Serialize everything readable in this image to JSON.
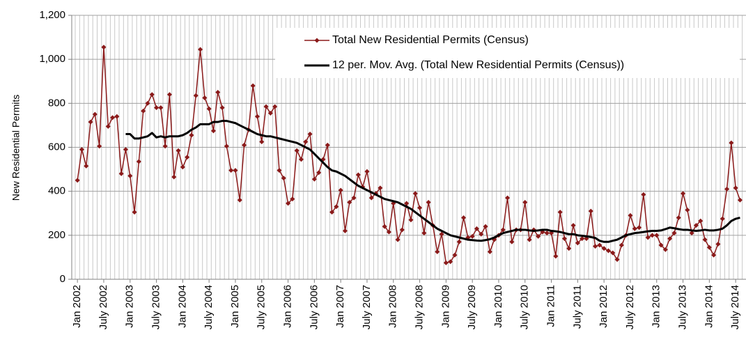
{
  "chart_data": {
    "type": "line",
    "ylabel": "New Residential Permits",
    "ylim": [
      0,
      1200
    ],
    "yticks": [
      0,
      200,
      400,
      600,
      800,
      {
        "value": 1000,
        "label": "1,000"
      },
      {
        "value": 1200,
        "label": "1,200"
      }
    ],
    "grid": true,
    "legend": "top-right",
    "categories": [
      "Jan 2002",
      null,
      null,
      null,
      null,
      null,
      "July 2002",
      null,
      null,
      null,
      null,
      null,
      "Jan 2003",
      null,
      null,
      null,
      null,
      null,
      "July 2003",
      null,
      null,
      null,
      null,
      null,
      "Jan 2004",
      null,
      null,
      null,
      null,
      null,
      "July 2004",
      null,
      null,
      null,
      null,
      null,
      "Jan 2005",
      null,
      null,
      null,
      null,
      null,
      "July 2005",
      null,
      null,
      null,
      null,
      null,
      "Jan 2006",
      null,
      null,
      null,
      null,
      null,
      "July 2006",
      null,
      null,
      null,
      null,
      null,
      "Jan 2007",
      null,
      null,
      null,
      null,
      null,
      "July 2007",
      null,
      null,
      null,
      null,
      null,
      "Jan 2008",
      null,
      null,
      null,
      null,
      null,
      "July 2008",
      null,
      null,
      null,
      null,
      null,
      "Jan 2009",
      null,
      null,
      null,
      null,
      null,
      "July 2009",
      null,
      null,
      null,
      null,
      null,
      "Jan 2010",
      null,
      null,
      null,
      null,
      null,
      "July 2010",
      null,
      null,
      null,
      null,
      null,
      "Jan 2011",
      null,
      null,
      null,
      null,
      null,
      "July 2011",
      null,
      null,
      null,
      null,
      null,
      "Jan 2012",
      null,
      null,
      null,
      null,
      null,
      "July 2012",
      null,
      null,
      null,
      null,
      null,
      "Jan 2013",
      null,
      null,
      null,
      null,
      null,
      "July 2013",
      null,
      null,
      null,
      null,
      null,
      "Jan 2014",
      null,
      null,
      null,
      null,
      null,
      "July 2014",
      null
    ],
    "series": [
      {
        "name": "Total New Residential Permits (Census)",
        "color": "#8b1a1a",
        "marker": "diamond",
        "values": [
          450,
          590,
          515,
          715,
          750,
          605,
          1055,
          695,
          735,
          740,
          480,
          590,
          470,
          305,
          535,
          765,
          800,
          840,
          780,
          780,
          605,
          840,
          465,
          585,
          510,
          555,
          655,
          835,
          1045,
          825,
          775,
          675,
          850,
          780,
          605,
          495,
          495,
          360,
          610,
          680,
          880,
          740,
          625,
          785,
          755,
          785,
          495,
          460,
          345,
          365,
          585,
          545,
          625,
          660,
          455,
          485,
          545,
          610,
          305,
          330,
          405,
          220,
          350,
          370,
          475,
          420,
          490,
          370,
          390,
          415,
          240,
          215,
          345,
          180,
          225,
          345,
          270,
          390,
          325,
          210,
          350,
          245,
          125,
          205,
          75,
          80,
          110,
          170,
          280,
          190,
          195,
          230,
          205,
          240,
          125,
          180,
          200,
          225,
          370,
          170,
          225,
          225,
          350,
          180,
          225,
          195,
          215,
          210,
          210,
          105,
          305,
          185,
          140,
          245,
          165,
          185,
          185,
          310,
          150,
          155,
          140,
          130,
          120,
          90,
          155,
          200,
          290,
          230,
          235,
          385,
          190,
          200,
          200,
          155,
          135,
          185,
          210,
          280,
          390,
          315,
          210,
          245,
          265,
          180,
          145,
          110,
          160,
          275,
          410,
          620,
          415,
          360
        ]
      },
      {
        "name": "12 per. Mov. Avg. (Total New Residential Permits (Census))",
        "color": "#000000",
        "values": [
          null,
          null,
          null,
          null,
          null,
          null,
          null,
          null,
          null,
          null,
          null,
          660,
          660,
          640,
          640,
          645,
          650,
          665,
          645,
          650,
          645,
          650,
          650,
          650,
          655,
          665,
          680,
          690,
          705,
          705,
          705,
          715,
          715,
          720,
          720,
          715,
          710,
          700,
          690,
          680,
          670,
          660,
          655,
          650,
          650,
          645,
          640,
          635,
          630,
          625,
          620,
          610,
          600,
          590,
          570,
          550,
          530,
          510,
          495,
          490,
          480,
          470,
          455,
          440,
          425,
          415,
          405,
          395,
          385,
          375,
          365,
          360,
          355,
          350,
          340,
          330,
          320,
          305,
          290,
          275,
          260,
          245,
          230,
          220,
          210,
          200,
          195,
          190,
          185,
          180,
          178,
          176,
          175,
          178,
          182,
          190,
          200,
          210,
          215,
          220,
          225,
          225,
          225,
          222,
          220,
          222,
          225,
          225,
          220,
          218,
          215,
          210,
          205,
          205,
          200,
          198,
          195,
          192,
          188,
          175,
          170,
          170,
          175,
          180,
          190,
          200,
          205,
          210,
          212,
          215,
          218,
          220,
          220,
          222,
          228,
          235,
          232,
          228,
          225,
          225,
          222,
          220,
          222,
          225,
          222,
          222,
          225,
          230,
          245,
          265,
          275,
          280
        ]
      }
    ]
  }
}
